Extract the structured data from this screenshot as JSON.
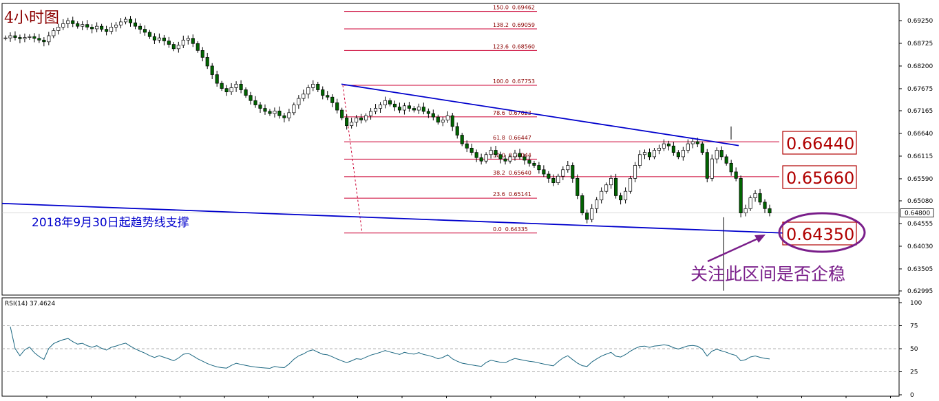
{
  "chart_data": [
    {
      "type": "candlestick",
      "title": "4小时图",
      "timeframe": "4H",
      "ylim": [
        0.62995,
        0.6937
      ],
      "y_ticks": [
        "0.69250",
        "0.68725",
        "0.68200",
        "0.67675",
        "0.67165",
        "0.66640",
        "0.66115",
        "0.65590",
        "0.65080",
        "0.64555",
        "0.64030",
        "0.63505",
        "0.62995"
      ],
      "current_price": "0.64800",
      "close_series": [
        0.6885,
        0.689,
        0.6886,
        0.6883,
        0.6886,
        0.6888,
        0.6884,
        0.688,
        0.6876,
        0.689,
        0.6902,
        0.691,
        0.6918,
        0.6925,
        0.6918,
        0.6912,
        0.6916,
        0.691,
        0.6906,
        0.6912,
        0.6905,
        0.69,
        0.691,
        0.6915,
        0.6922,
        0.6928,
        0.692,
        0.6912,
        0.6905,
        0.6898,
        0.6888,
        0.688,
        0.6885,
        0.6878,
        0.687,
        0.686,
        0.6868,
        0.688,
        0.6884,
        0.6872,
        0.6856,
        0.684,
        0.682,
        0.68,
        0.678,
        0.6768,
        0.676,
        0.677,
        0.6778,
        0.6765,
        0.6752,
        0.674,
        0.673,
        0.6722,
        0.6715,
        0.671,
        0.6716,
        0.6705,
        0.67,
        0.6712,
        0.673,
        0.6745,
        0.6755,
        0.677,
        0.6778,
        0.6765,
        0.6752,
        0.6748,
        0.6735,
        0.6718,
        0.67,
        0.6682,
        0.669,
        0.67,
        0.6695,
        0.6705,
        0.6715,
        0.6722,
        0.673,
        0.674,
        0.6732,
        0.6725,
        0.6718,
        0.6728,
        0.6722,
        0.6718,
        0.6725,
        0.6715,
        0.671,
        0.6702,
        0.669,
        0.6695,
        0.6705,
        0.668,
        0.666,
        0.664,
        0.663,
        0.662,
        0.6608,
        0.66,
        0.6615,
        0.6625,
        0.6615,
        0.6605,
        0.66,
        0.661,
        0.6618,
        0.661,
        0.6602,
        0.6595,
        0.659,
        0.658,
        0.657,
        0.656,
        0.655,
        0.6565,
        0.658,
        0.659,
        0.656,
        0.652,
        0.648,
        0.6465,
        0.649,
        0.651,
        0.653,
        0.6545,
        0.656,
        0.652,
        0.651,
        0.653,
        0.656,
        0.659,
        0.6615,
        0.662,
        0.661,
        0.6625,
        0.663,
        0.664,
        0.6635,
        0.662,
        0.661,
        0.6625,
        0.664,
        0.6645,
        0.664,
        0.662,
        0.656,
        0.6605,
        0.6625,
        0.661,
        0.6595,
        0.6575,
        0.656,
        0.648,
        0.649,
        0.6515,
        0.6525,
        0.6505,
        0.649,
        0.648
      ],
      "fibonacci": [
        {
          "ratio": "150.0",
          "price": "0.69462"
        },
        {
          "ratio": "138.2",
          "price": "0.69059"
        },
        {
          "ratio": "123.6",
          "price": "0.68560"
        },
        {
          "ratio": "100.0",
          "price": "0.67753"
        },
        {
          "ratio": "78.6",
          "price": "0.67023"
        },
        {
          "ratio": "61.8",
          "price": "0.66447"
        },
        {
          "ratio": "50.0",
          "price": "0.66044"
        },
        {
          "ratio": "38.2",
          "price": "0.65640"
        },
        {
          "ratio": "23.6",
          "price": "0.65141"
        },
        {
          "ratio": "0.0",
          "price": "0.64335"
        }
      ],
      "trendlines": [
        {
          "name": "downtrend",
          "from": [
            0.6778
          ],
          "to": [
            0.6636
          ]
        },
        {
          "name": "support",
          "from": [
            0.6502
          ],
          "to": [
            0.6432
          ]
        }
      ],
      "annotations": {
        "support_label": "2018年9月30日起趋势线支撑",
        "levels": [
          "0.66440",
          "0.65660",
          "0.64350"
        ],
        "note": "关注此区间是否企稳"
      },
      "colors": {
        "up": "#008000",
        "down": "#008000",
        "fib": "#cc0033",
        "trend": "#0000cc",
        "annotation": "#7a1e8a"
      }
    },
    {
      "type": "line",
      "title": "RSI(14) 37.4624",
      "ylim": [
        0,
        100
      ],
      "y_ticks": [
        "100",
        "75",
        "50",
        "25",
        "0"
      ],
      "levels": [
        75,
        50,
        25
      ],
      "color": "#1a6680"
    }
  ]
}
